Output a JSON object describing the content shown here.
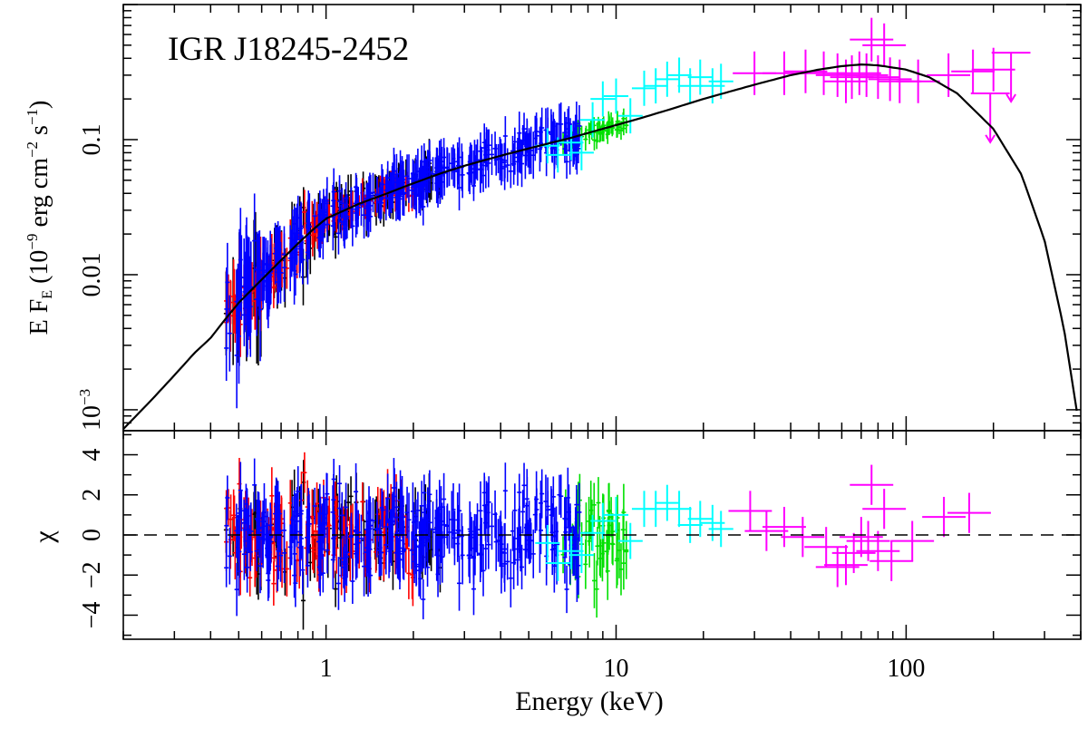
{
  "chart_data": [
    {
      "type": "scatter",
      "panel": "spectrum",
      "title": "IGR J18245-2452",
      "xlabel": "Energy (keV)",
      "ylabel_main": "E F",
      "ylabel_sub": "E",
      "ylabel_rest": " (10",
      "ylabel_exp1": "−9",
      "ylabel_unit1": " erg cm",
      "ylabel_exp2": "−2",
      "ylabel_unit2": " s",
      "ylabel_exp3": "−1",
      "ylabel_close": ")",
      "xscale": "log",
      "yscale": "log",
      "xlim": [
        0.2,
        400
      ],
      "ylim": [
        0.0007,
        1.0
      ],
      "x_ticks": [
        {
          "value": 1,
          "label": "1"
        },
        {
          "value": 10,
          "label": "10"
        },
        {
          "value": 100,
          "label": "100"
        }
      ],
      "y_ticks": [
        {
          "value": 0.001,
          "label_base": "10",
          "label_exp": "−3"
        },
        {
          "value": 0.01,
          "label": "0.01"
        },
        {
          "value": 0.1,
          "label": "0.1"
        }
      ],
      "model": {
        "name": "best-fit model",
        "color": "#000000",
        "points": [
          [
            0.2,
            0.00072
          ],
          [
            0.25,
            0.00118
          ],
          [
            0.3,
            0.0018
          ],
          [
            0.35,
            0.0026
          ],
          [
            0.4,
            0.0034
          ],
          [
            0.45,
            0.0047
          ],
          [
            0.5,
            0.0062
          ],
          [
            0.6,
            0.0092
          ],
          [
            0.7,
            0.0128
          ],
          [
            0.8,
            0.017
          ],
          [
            0.9,
            0.0215
          ],
          [
            1.0,
            0.026
          ],
          [
            1.1,
            0.0285
          ],
          [
            1.3,
            0.0335
          ],
          [
            1.6,
            0.0395
          ],
          [
            2.0,
            0.0475
          ],
          [
            2.5,
            0.0565
          ],
          [
            3.0,
            0.064
          ],
          [
            4.0,
            0.076
          ],
          [
            5.0,
            0.086
          ],
          [
            6.0,
            0.095
          ],
          [
            7.0,
            0.103
          ],
          [
            8.0,
            0.112
          ],
          [
            10.0,
            0.128
          ],
          [
            12.0,
            0.143
          ],
          [
            15.0,
            0.165
          ],
          [
            20.0,
            0.2
          ],
          [
            30.0,
            0.255
          ],
          [
            40.0,
            0.3
          ],
          [
            50.0,
            0.33
          ],
          [
            60.0,
            0.35
          ],
          [
            70.0,
            0.36
          ],
          [
            80.0,
            0.355
          ],
          [
            100.0,
            0.33
          ],
          [
            120.0,
            0.29
          ],
          [
            150.0,
            0.22
          ],
          [
            200.0,
            0.12
          ],
          [
            250.0,
            0.055
          ],
          [
            300.0,
            0.018
          ],
          [
            350.0,
            0.004
          ],
          [
            390.0,
            0.0009
          ]
        ]
      },
      "series": [
        {
          "name": "black",
          "color": "#000000",
          "e_min": 0.45,
          "e_max": 2.5,
          "n": 90,
          "scatter": 0.13,
          "seed": 11
        },
        {
          "name": "red",
          "color": "#ff0000",
          "e_min": 0.45,
          "e_max": 2.0,
          "n": 130,
          "scatter": 0.09,
          "seed": 23
        },
        {
          "name": "green",
          "color": "#00e000",
          "e_min": 6.5,
          "e_max": 11,
          "n": 55,
          "scatter": 0.06,
          "seed": 37
        },
        {
          "name": "blue",
          "color": "#0000ff",
          "e_min": 0.45,
          "e_max": 7.5,
          "n": 380,
          "scatter": 0.13,
          "seed": 41
        },
        {
          "name": "cyan",
          "color": "#00ffff",
          "points": [
            [
              5.8,
              0.09
            ],
            [
              6.3,
              0.077
            ],
            [
              7.0,
              0.095
            ],
            [
              7.6,
              0.08
            ],
            [
              8.3,
              0.14
            ],
            [
              9.0,
              0.2
            ],
            [
              10.0,
              0.21
            ],
            [
              11.2,
              0.15
            ],
            [
              12.5,
              0.24
            ],
            [
              13.7,
              0.25
            ],
            [
              15.0,
              0.28
            ],
            [
              16.5,
              0.3
            ],
            [
              18.0,
              0.25
            ],
            [
              19.5,
              0.29
            ],
            [
              21.5,
              0.25
            ],
            [
              23.0,
              0.27
            ]
          ]
        },
        {
          "name": "magenta",
          "color": "#ff00ff",
          "points": [
            [
              30,
              0.31
            ],
            [
              38,
              0.31
            ],
            [
              45,
              0.32
            ],
            [
              52,
              0.31
            ],
            [
              58,
              0.3
            ],
            [
              62,
              0.27
            ],
            [
              65,
              0.29
            ],
            [
              69,
              0.31
            ],
            [
              73,
              0.3
            ],
            [
              76,
              0.55
            ],
            [
              80,
              0.29
            ],
            [
              84,
              0.5
            ],
            [
              88,
              0.28
            ],
            [
              95,
              0.27
            ],
            [
              110,
              0.27
            ],
            [
              140,
              0.3
            ],
            [
              170,
              0.32
            ],
            [
              200,
              0.33
            ]
          ],
          "upper_limits": [
            [
              195,
              0.22
            ],
            [
              230,
              0.44
            ]
          ]
        }
      ]
    },
    {
      "type": "scatter",
      "panel": "residuals",
      "ylabel": "χ",
      "xscale": "log",
      "xlim": [
        0.2,
        400
      ],
      "ylim": [
        -5.2,
        5.2
      ],
      "y_ticks": [
        {
          "value": -4,
          "label": "−4"
        },
        {
          "value": -2,
          "label": "−2"
        },
        {
          "value": 0,
          "label": "0"
        },
        {
          "value": 2,
          "label": "2"
        },
        {
          "value": 4,
          "label": "4"
        }
      ],
      "zero_line": 0,
      "cyan_residuals": [
        [
          5.8,
          -0.4
        ],
        [
          6.3,
          -1.4
        ],
        [
          7.0,
          -0.8
        ],
        [
          7.6,
          -1.0
        ],
        [
          8.3,
          0.1
        ],
        [
          9.0,
          0.7
        ],
        [
          10.0,
          1.0
        ],
        [
          11.2,
          -0.3
        ],
        [
          12.5,
          1.3
        ],
        [
          13.7,
          1.3
        ],
        [
          15.0,
          1.6
        ],
        [
          16.5,
          1.3
        ],
        [
          18.0,
          0.5
        ],
        [
          19.5,
          0.8
        ],
        [
          21.5,
          0.6
        ],
        [
          23.0,
          0.3
        ]
      ],
      "magenta_residuals": [
        [
          29,
          1.2
        ],
        [
          33,
          0.2
        ],
        [
          38,
          0.4
        ],
        [
          44,
          -0.1
        ],
        [
          53,
          -0.6
        ],
        [
          58,
          -1.6
        ],
        [
          62,
          -1.5
        ],
        [
          66,
          -0.9
        ],
        [
          70,
          -0.1
        ],
        [
          74,
          -0.3
        ],
        [
          76,
          2.5
        ],
        [
          80,
          -0.8
        ],
        [
          84,
          1.3
        ],
        [
          89,
          -1.3
        ],
        [
          105,
          -0.3
        ],
        [
          135,
          0.9
        ],
        [
          165,
          1.1
        ]
      ]
    }
  ]
}
